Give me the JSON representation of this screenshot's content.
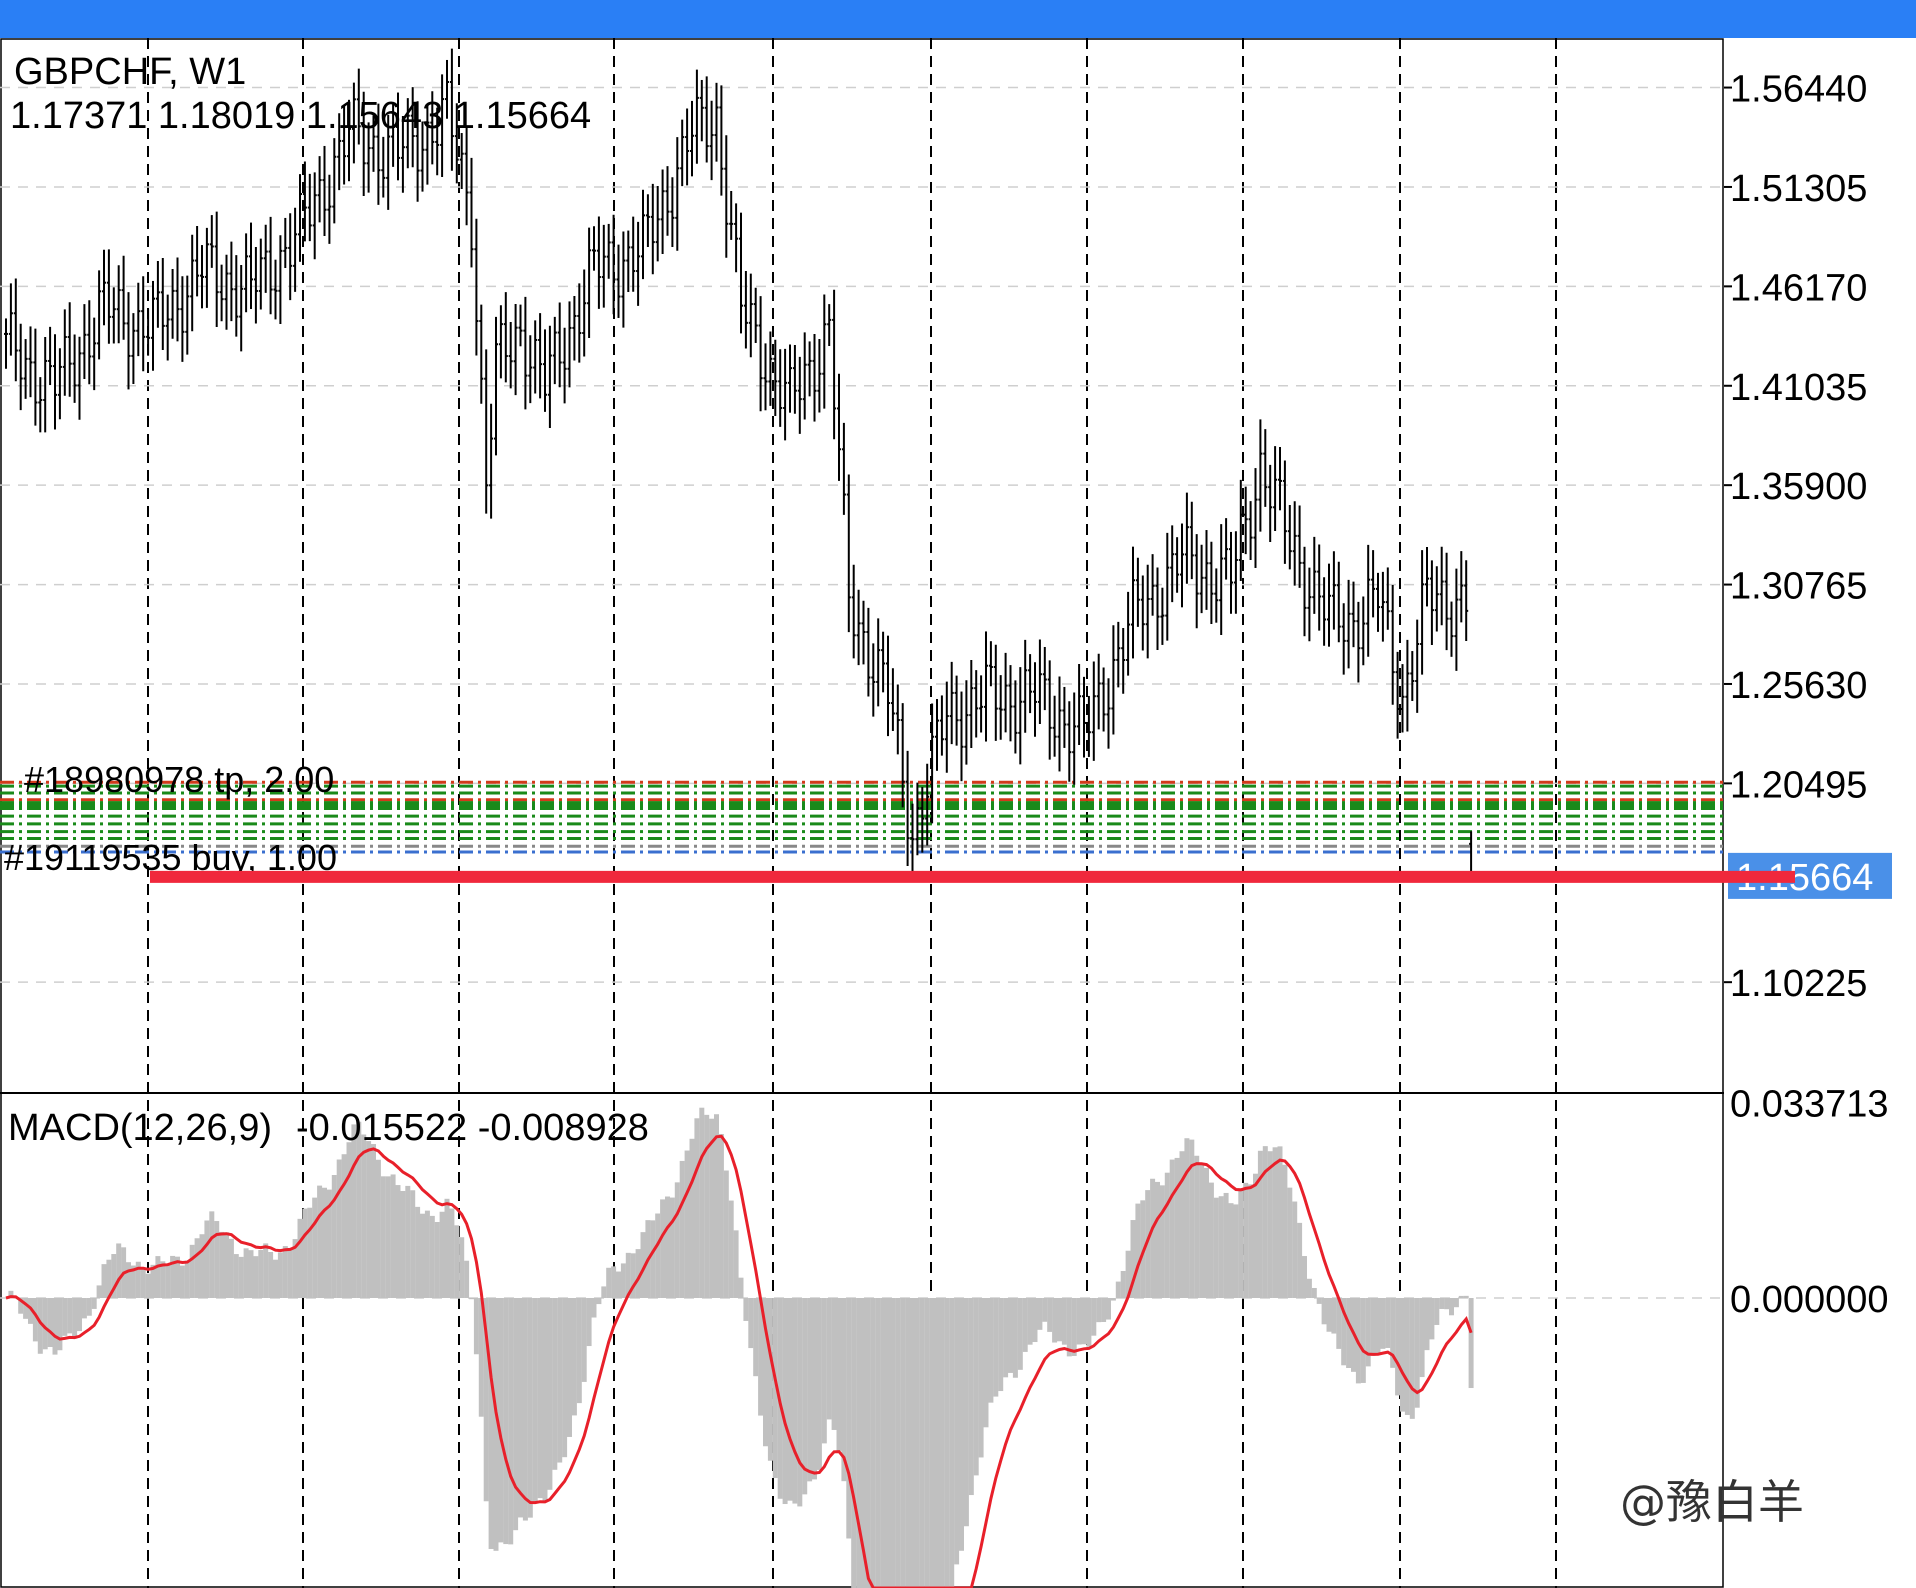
{
  "title": "GBPCHF, W1",
  "ohlc_text": "1.17371 1.18019 1.15643 1.15664",
  "macd_label": "MACD(12,26,9)",
  "macd_values": "-0.015522 -0.008928",
  "orders": [
    {
      "label": "#18980978 tp, 2.00"
    },
    {
      "label": "#19119535 buy, 1.00"
    }
  ],
  "current_price": "1.15664",
  "watermark": "@豫白羊",
  "colors": {
    "candle": "#000000",
    "signal": "#e8202a",
    "histogram": "#c0c0c0",
    "price_line": "#f0283c",
    "price_tag": "#4a90e8",
    "order_green": "#1a8a1a",
    "order_red": "#d23a1a",
    "topbar": "#2a7ff5"
  },
  "chart_data": [
    {
      "type": "candlestick",
      "symbol": "GBPCHF",
      "timeframe": "W1",
      "y_ticks": [
        "1.56440",
        "1.51305",
        "1.46170",
        "1.41035",
        "1.35900",
        "1.30765",
        "1.25630",
        "1.20495",
        "1.10225"
      ],
      "ylim": [
        1.045,
        1.59
      ],
      "last": {
        "open": 1.17371,
        "high": 1.18019,
        "low": 1.15643,
        "close": 1.15664
      },
      "weeks": 300,
      "close_series_anchors": [
        [
          0,
          1.43
        ],
        [
          10,
          1.41
        ],
        [
          20,
          1.45
        ],
        [
          30,
          1.44
        ],
        [
          40,
          1.47
        ],
        [
          50,
          1.46
        ],
        [
          60,
          1.49
        ],
        [
          70,
          1.54
        ],
        [
          80,
          1.53
        ],
        [
          90,
          1.55
        ],
        [
          95,
          1.5
        ],
        [
          98,
          1.36
        ],
        [
          100,
          1.42
        ],
        [
          105,
          1.44
        ],
        [
          110,
          1.41
        ],
        [
          115,
          1.44
        ],
        [
          120,
          1.47
        ],
        [
          130,
          1.48
        ],
        [
          140,
          1.54
        ],
        [
          145,
          1.55
        ],
        [
          150,
          1.45
        ],
        [
          160,
          1.4
        ],
        [
          168,
          1.44
        ],
        [
          172,
          1.3
        ],
        [
          180,
          1.25
        ],
        [
          185,
          1.18
        ],
        [
          192,
          1.24
        ],
        [
          200,
          1.25
        ],
        [
          210,
          1.25
        ],
        [
          220,
          1.23
        ],
        [
          230,
          1.29
        ],
        [
          240,
          1.32
        ],
        [
          250,
          1.31
        ],
        [
          256,
          1.37
        ],
        [
          262,
          1.33
        ],
        [
          270,
          1.29
        ],
        [
          275,
          1.29
        ],
        [
          280,
          1.3
        ],
        [
          285,
          1.25
        ],
        [
          290,
          1.3
        ],
        [
          295,
          1.3
        ]
      ]
    },
    {
      "type": "macd",
      "params": [
        12,
        26,
        9
      ],
      "macd": -0.015522,
      "signal": -0.008928,
      "y_ticks": [
        "0.033713",
        "0.000000"
      ],
      "ylim": [
        -0.05,
        0.035
      ]
    }
  ]
}
